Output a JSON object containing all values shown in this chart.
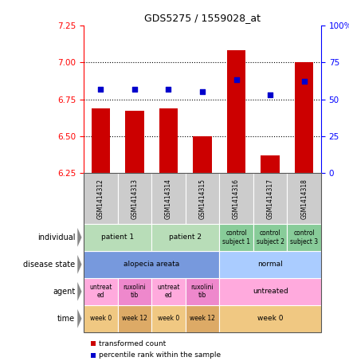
{
  "title": "GDS5275 / 1559028_at",
  "samples": [
    "GSM1414312",
    "GSM1414313",
    "GSM1414314",
    "GSM1414315",
    "GSM1414316",
    "GSM1414317",
    "GSM1414318"
  ],
  "transformed_count": [
    6.69,
    6.67,
    6.69,
    6.5,
    7.08,
    6.37,
    7.0
  ],
  "percentile_rank": [
    57,
    57,
    57,
    55,
    63,
    53,
    62
  ],
  "ylim_left": [
    6.25,
    7.25
  ],
  "ylim_right": [
    0,
    100
  ],
  "yticks_left": [
    6.25,
    6.5,
    6.75,
    7.0,
    7.25
  ],
  "ytick_labels_right": [
    "0",
    "25",
    "50",
    "75",
    "100%"
  ],
  "bar_color": "#cc0000",
  "dot_color": "#0000cc",
  "dot_size": 25,
  "bar_width": 0.55,
  "annotation_rows": [
    {
      "label": "individual",
      "cells": [
        {
          "text": "patient 1",
          "span": 2,
          "color": "#b8ddb8"
        },
        {
          "text": "patient 2",
          "span": 2,
          "color": "#b8ddb8"
        },
        {
          "text": "control\nsubject 1",
          "span": 1,
          "color": "#88cc99"
        },
        {
          "text": "control\nsubject 2",
          "span": 1,
          "color": "#88cc99"
        },
        {
          "text": "control\nsubject 3",
          "span": 1,
          "color": "#88cc99"
        }
      ]
    },
    {
      "label": "disease state",
      "cells": [
        {
          "text": "alopecia areata",
          "span": 4,
          "color": "#7799dd"
        },
        {
          "text": "normal",
          "span": 3,
          "color": "#aaccff"
        }
      ]
    },
    {
      "label": "agent",
      "cells": [
        {
          "text": "untreat\ned",
          "span": 1,
          "color": "#ffaadd"
        },
        {
          "text": "ruxolini\ntib",
          "span": 1,
          "color": "#ee88cc"
        },
        {
          "text": "untreat\ned",
          "span": 1,
          "color": "#ffaadd"
        },
        {
          "text": "ruxolini\ntib",
          "span": 1,
          "color": "#ee88cc"
        },
        {
          "text": "untreated",
          "span": 3,
          "color": "#ffaadd"
        }
      ]
    },
    {
      "label": "time",
      "cells": [
        {
          "text": "week 0",
          "span": 1,
          "color": "#f0c882"
        },
        {
          "text": "week 12",
          "span": 1,
          "color": "#ddaa66"
        },
        {
          "text": "week 0",
          "span": 1,
          "color": "#f0c882"
        },
        {
          "text": "week 12",
          "span": 1,
          "color": "#ddaa66"
        },
        {
          "text": "week 0",
          "span": 3,
          "color": "#f0c882"
        }
      ]
    }
  ],
  "legend": [
    {
      "color": "#cc0000",
      "label": "transformed count"
    },
    {
      "color": "#0000cc",
      "label": "percentile rank within the sample"
    }
  ]
}
